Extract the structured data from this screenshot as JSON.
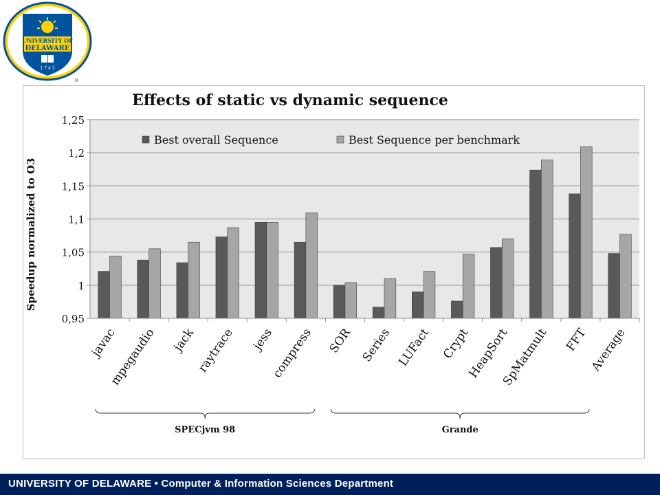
{
  "header": {
    "logo": {
      "text_top": "UNIVERSITY OF",
      "text_bottom": "DELAWARE",
      "year": "1 7 4 3",
      "registered": "®"
    }
  },
  "footer": {
    "text": "UNIVERSITY OF DELAWARE • Computer & Information Sciences Department"
  },
  "colors": {
    "series_dark": "#595959",
    "series_light": "#a6a6a6",
    "plot_bg": "#e8e8e8",
    "footer_bg": "#00205b",
    "logo_blue": "#00539f",
    "logo_gold": "#ffd200"
  },
  "chart_data": {
    "type": "bar",
    "title": "Effects of  static vs dynamic sequence",
    "xlabel": "",
    "ylabel": "Speedup  normalized to O3",
    "ylim": [
      0.95,
      1.25
    ],
    "yticks": [
      "0,95",
      "1",
      "1,05",
      "1,1",
      "1,15",
      "1,2",
      "1,25"
    ],
    "ytick_values": [
      0.95,
      1.0,
      1.05,
      1.1,
      1.15,
      1.2,
      1.25
    ],
    "grid": true,
    "legend_position": "top",
    "categories": [
      "javac",
      "mpegaudio",
      "jack",
      "raytrace",
      "jess",
      "compress",
      "SOR",
      "Series",
      "LUFact",
      "Crypt",
      "HeapSort",
      "SpMatmult",
      "FFT",
      "Average"
    ],
    "series": [
      {
        "name": "Best overall Sequence",
        "color": "#595959",
        "values": [
          1.021,
          1.038,
          1.034,
          1.073,
          1.095,
          1.065,
          1.0,
          0.967,
          0.99,
          0.976,
          1.057,
          1.174,
          1.138,
          1.048
        ]
      },
      {
        "name": "Best Sequence per benchmark",
        "color": "#a6a6a6",
        "values": [
          1.044,
          1.055,
          1.065,
          1.087,
          1.095,
          1.109,
          1.004,
          1.01,
          1.021,
          1.047,
          1.07,
          1.189,
          1.209,
          1.077
        ]
      }
    ],
    "groups": [
      {
        "label": "SPECjvm 98",
        "from": "javac",
        "to": "compress"
      },
      {
        "label": "Grande",
        "from": "SOR",
        "to": "FFT"
      }
    ]
  }
}
